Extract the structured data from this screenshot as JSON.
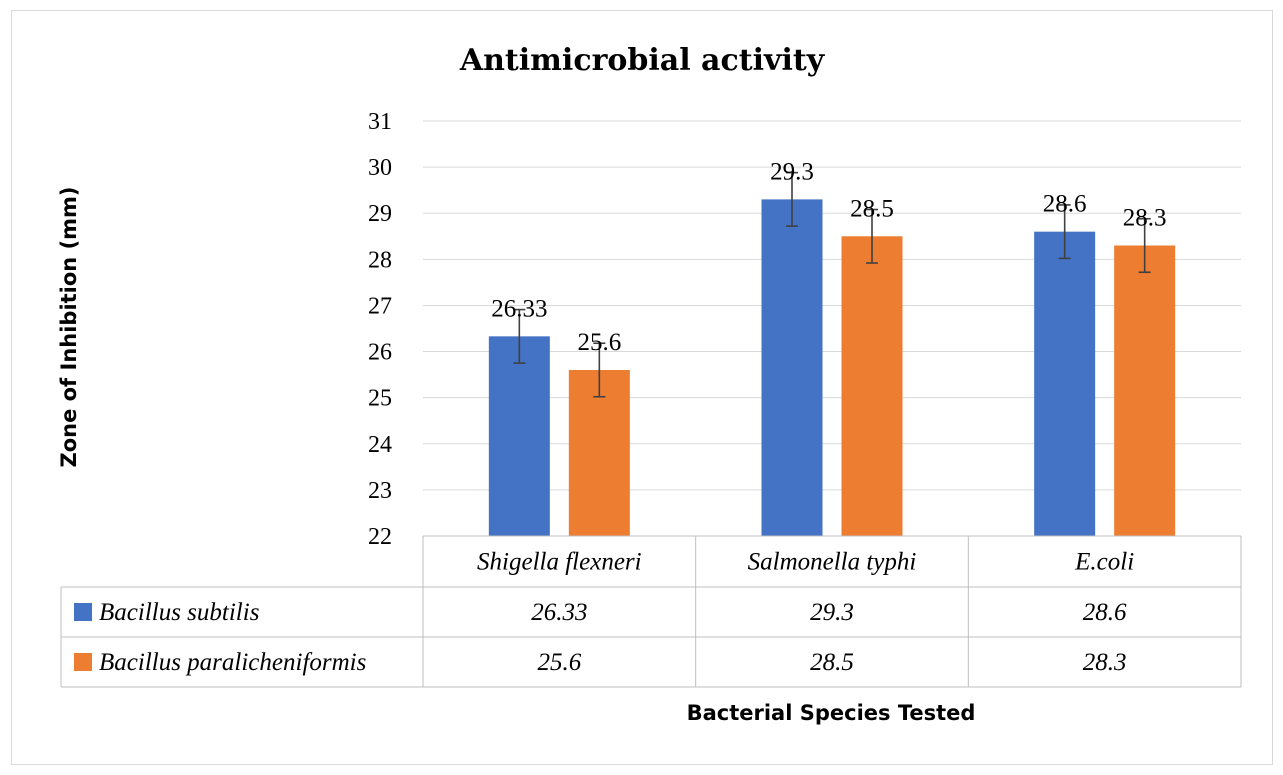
{
  "chart_data": {
    "type": "bar",
    "title": "Antimicrobial activity",
    "xlabel": "Bacterial Species Tested",
    "ylabel": "Zone of Inhibition (mm)",
    "ylim": [
      22,
      31
    ],
    "yticks": [
      "22",
      "23",
      "24",
      "25",
      "26",
      "27",
      "28",
      "29",
      "30",
      "31"
    ],
    "grid": true,
    "legend": "data-table",
    "categories": [
      "Shigella flexneri",
      "Salmonella typhi",
      "E.coli"
    ],
    "series": [
      {
        "name": "Bacillus subtilis",
        "color": "#4472C4",
        "values": [
          26.33,
          29.3,
          28.6
        ],
        "labels": [
          "26.33",
          "29.3",
          "28.6"
        ],
        "error": [
          0.58,
          0.58,
          0.58
        ]
      },
      {
        "name": "Bacillus paralicheniformis",
        "color": "#ED7D31",
        "values": [
          25.6,
          28.5,
          28.3
        ],
        "labels": [
          "25.6",
          "28.5",
          "28.3"
        ],
        "error": [
          0.58,
          0.58,
          0.58
        ]
      }
    ]
  }
}
